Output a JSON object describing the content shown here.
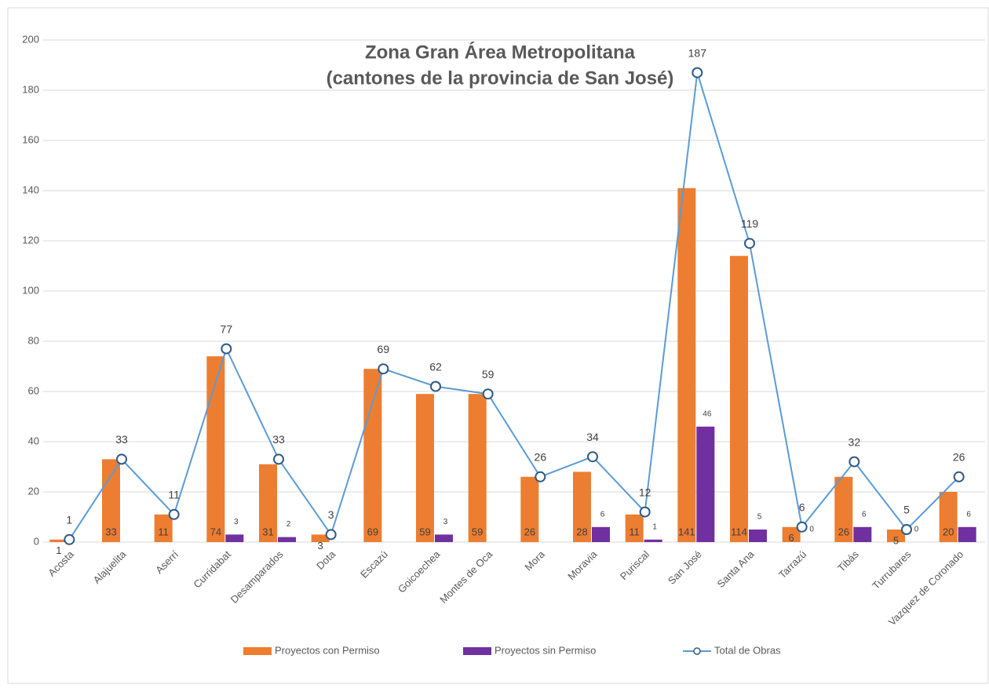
{
  "chart_data": {
    "type": "bar_line",
    "title": [
      "Zona Gran Área Metropolitana",
      "(cantones de la provincia de San José)"
    ],
    "categories": [
      "Acosta",
      "Alajuelita",
      "Aserrí",
      "Curridabat",
      "Desamparados",
      "Dota",
      "Escazú",
      "Goicoechea",
      "Montes de Oca",
      "Mora",
      "Moravia",
      "Puriscal",
      "San José",
      "Santa Ana",
      "Tarrazú",
      "Tibás",
      "Turrubares",
      "Vazquez de Coronado"
    ],
    "series": [
      {
        "name": "Proyectos con Permiso",
        "type": "bar",
        "color": "#ed7d31",
        "values": [
          1,
          33,
          11,
          74,
          31,
          3,
          69,
          59,
          59,
          26,
          28,
          11,
          141,
          114,
          6,
          26,
          5,
          20
        ]
      },
      {
        "name": "Proyectos sin Permiso",
        "type": "bar",
        "color": "#7030a0",
        "values": [
          null,
          null,
          null,
          3,
          2,
          null,
          null,
          3,
          null,
          null,
          6,
          1,
          46,
          5,
          0,
          6,
          0,
          6
        ]
      },
      {
        "name": "Total de Obras",
        "type": "line",
        "color": "#5b9bd5",
        "values": [
          1,
          33,
          11,
          77,
          33,
          3,
          69,
          62,
          59,
          26,
          34,
          12,
          187,
          119,
          6,
          32,
          5,
          26
        ]
      }
    ],
    "ylim": [
      0,
      200
    ],
    "yticks": [
      0,
      20,
      40,
      60,
      80,
      100,
      120,
      140,
      160,
      180,
      200
    ],
    "grid": true,
    "legend": "bottom"
  }
}
